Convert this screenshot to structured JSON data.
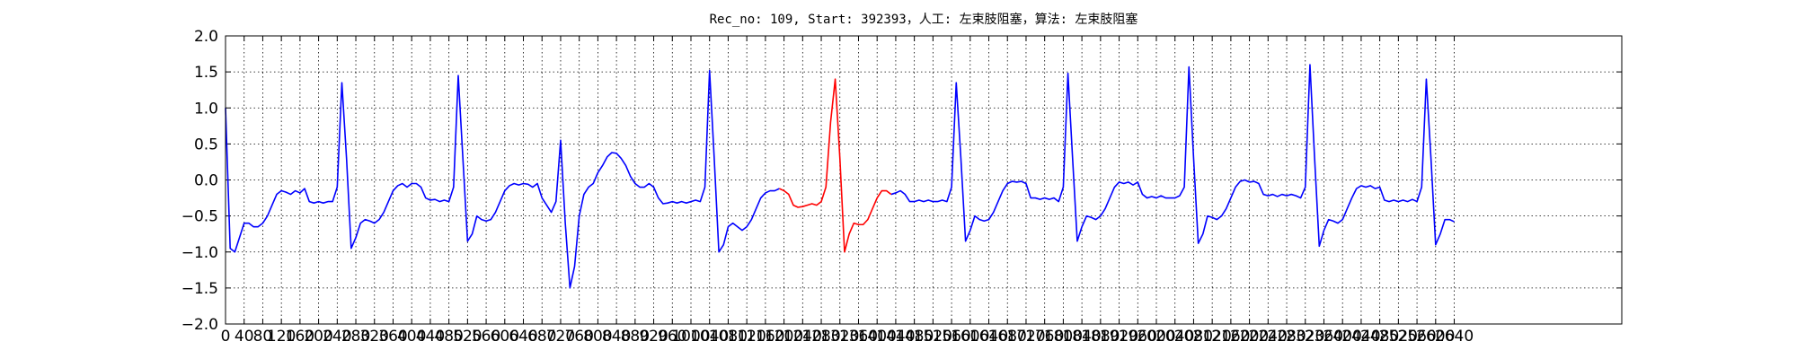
{
  "chart_data": {
    "type": "line",
    "title": "Rec_no: 109, Start: 392393，人工: 左束肢阻塞，算法: 左束肢阻塞",
    "x": [
      0,
      10,
      20,
      30,
      40,
      50,
      60,
      70,
      80,
      90,
      100,
      110,
      120,
      130,
      140,
      150,
      160,
      170,
      180,
      190,
      200,
      210,
      220,
      230,
      240,
      250,
      260,
      270,
      280,
      290,
      300,
      310,
      320,
      330,
      340,
      350,
      360,
      370,
      380,
      390,
      400,
      410,
      420,
      430,
      440,
      450,
      460,
      470,
      480,
      490,
      500,
      510,
      520,
      530,
      540,
      550,
      560,
      570,
      580,
      590,
      600,
      610,
      620,
      630,
      640,
      650,
      660,
      670,
      680,
      690,
      700,
      710,
      720,
      730,
      740,
      750,
      760,
      770,
      780,
      790,
      800,
      810,
      820,
      830,
      840,
      850,
      860,
      870,
      880,
      890,
      900,
      910,
      920,
      930,
      940,
      950,
      960,
      970,
      980,
      990,
      1000,
      1010,
      1020,
      1030,
      1040,
      1050,
      1060,
      1070,
      1080,
      1090,
      1100,
      1110,
      1120,
      1130,
      1140,
      1150,
      1160,
      1170,
      1180,
      1190,
      1200,
      1210,
      1220,
      1230,
      1240,
      1250,
      1260,
      1270,
      1280,
      1290,
      1300,
      1310,
      1320,
      1330,
      1340,
      1350,
      1360,
      1370,
      1380,
      1390,
      1400,
      1410,
      1420,
      1430,
      1440,
      1450,
      1460,
      1470,
      1480,
      1490,
      1500,
      1510,
      1520,
      1530,
      1540,
      1550,
      1560,
      1570,
      1580,
      1590,
      1600,
      1610,
      1620,
      1630,
      1640,
      1650,
      1660,
      1670,
      1680,
      1690,
      1700,
      1710,
      1720,
      1730,
      1740,
      1750,
      1760,
      1770,
      1780,
      1790,
      1800,
      1810,
      1820,
      1830,
      1840,
      1850,
      1860,
      1870,
      1880,
      1890,
      1900,
      1910,
      1920,
      1930,
      1940,
      1950,
      1960,
      1970,
      1980,
      1990,
      2000,
      2010,
      2020,
      2030,
      2040,
      2050,
      2060,
      2070,
      2080,
      2090,
      2100,
      2110,
      2120,
      2130,
      2140,
      2150,
      2160,
      2170,
      2180,
      2190,
      2200,
      2210,
      2220,
      2230,
      2240,
      2250,
      2260,
      2270,
      2280,
      2290,
      2300,
      2310,
      2320,
      2330,
      2340,
      2350,
      2360,
      2370,
      2380,
      2390,
      2400,
      2410,
      2420,
      2430,
      2440,
      2450,
      2460,
      2470,
      2480,
      2490,
      2500,
      2510,
      2520,
      2530,
      2540,
      2550,
      2560,
      2570,
      2580,
      2590,
      2600,
      2610,
      2620,
      2630,
      2640
    ],
    "series": [
      {
        "color": "#0000ff",
        "values": [
          1.0,
          -0.95,
          -1.0,
          -0.8,
          -0.6,
          -0.6,
          -0.65,
          -0.65,
          -0.6,
          -0.5,
          -0.35,
          -0.2,
          -0.15,
          -0.17,
          -0.2,
          -0.15,
          -0.18,
          -0.12,
          -0.3,
          -0.32,
          -0.3,
          -0.32,
          -0.3,
          -0.3,
          -0.1,
          1.35,
          0.3,
          -0.95,
          -0.8,
          -0.6,
          -0.55,
          -0.57,
          -0.6,
          -0.55,
          -0.45,
          -0.3,
          -0.15,
          -0.08,
          -0.05,
          -0.1,
          -0.05,
          -0.05,
          -0.1,
          -0.25,
          -0.28,
          -0.27,
          -0.3,
          -0.28,
          -0.3,
          -0.1,
          1.45,
          0.3,
          -0.85,
          -0.75,
          -0.5,
          -0.55,
          -0.57,
          -0.55,
          -0.45,
          -0.3,
          -0.15,
          -0.08,
          -0.05,
          -0.07,
          -0.05,
          -0.06,
          -0.1,
          -0.05,
          -0.25,
          -0.35,
          -0.45,
          -0.3,
          0.55,
          -0.6,
          -1.5,
          -1.2,
          -0.5,
          -0.2,
          -0.1,
          -0.05,
          0.1,
          0.2,
          0.32,
          0.38,
          0.37,
          0.3,
          0.2,
          0.05,
          -0.05,
          -0.1,
          -0.1,
          -0.05,
          -0.1,
          -0.25,
          -0.33,
          -0.32,
          -0.3,
          -0.32,
          -0.3,
          -0.32,
          -0.3,
          -0.28,
          -0.3,
          -0.1,
          1.52,
          0.3,
          -1.0,
          -0.9,
          -0.65,
          -0.6,
          -0.65,
          -0.7,
          -0.65,
          -0.55,
          -0.4,
          -0.25,
          -0.18,
          -0.15,
          -0.15,
          -0.12,
          null,
          null,
          null,
          null,
          null,
          null,
          null,
          null,
          null,
          null,
          null,
          null,
          null,
          null,
          null,
          null,
          null,
          null,
          null,
          null,
          null,
          null,
          null,
          -0.2,
          -0.18,
          -0.15,
          -0.2,
          -0.3,
          -0.3,
          -0.28,
          -0.3,
          -0.28,
          -0.3,
          -0.3,
          -0.28,
          -0.3,
          -0.1,
          1.35,
          0.3,
          -0.85,
          -0.7,
          -0.5,
          -0.55,
          -0.57,
          -0.55,
          -0.45,
          -0.3,
          -0.15,
          -0.05,
          -0.02,
          -0.03,
          -0.02,
          -0.05,
          -0.25,
          -0.25,
          -0.27,
          -0.25,
          -0.27,
          -0.25,
          -0.3,
          -0.1,
          1.48,
          0.3,
          -0.85,
          -0.65,
          -0.5,
          -0.52,
          -0.55,
          -0.5,
          -0.4,
          -0.25,
          -0.1,
          -0.03,
          -0.05,
          -0.03,
          -0.07,
          -0.03,
          -0.2,
          -0.25,
          -0.23,
          -0.25,
          -0.22,
          -0.25,
          -0.25,
          -0.25,
          -0.22,
          -0.1,
          1.57,
          0.3,
          -0.88,
          -0.75,
          -0.5,
          -0.52,
          -0.55,
          -0.5,
          -0.4,
          -0.25,
          -0.1,
          -0.02,
          0.0,
          -0.03,
          -0.02,
          -0.05,
          -0.2,
          -0.22,
          -0.2,
          -0.23,
          -0.2,
          -0.22,
          -0.2,
          -0.22,
          -0.25,
          -0.1,
          1.6,
          0.3,
          -0.92,
          -0.7,
          -0.55,
          -0.57,
          -0.6,
          -0.55,
          -0.4,
          -0.25,
          -0.12,
          -0.08,
          -0.1,
          -0.08,
          -0.12,
          -0.1,
          -0.28,
          -0.3,
          -0.28,
          -0.3,
          -0.28,
          -0.3,
          -0.27,
          -0.3,
          -0.1,
          1.4,
          0.3,
          -0.9,
          -0.75,
          -0.55,
          -0.55,
          -0.58
        ]
      },
      {
        "color": "#ff0000",
        "values": [
          null,
          null,
          null,
          null,
          null,
          null,
          null,
          null,
          null,
          null,
          null,
          null,
          null,
          null,
          null,
          null,
          null,
          null,
          null,
          null,
          null,
          null,
          null,
          null,
          null,
          null,
          null,
          null,
          null,
          null,
          null,
          null,
          null,
          null,
          null,
          null,
          null,
          null,
          null,
          null,
          null,
          null,
          null,
          null,
          null,
          null,
          null,
          null,
          null,
          null,
          null,
          null,
          null,
          null,
          null,
          null,
          null,
          null,
          null,
          null,
          null,
          null,
          null,
          null,
          null,
          null,
          null,
          null,
          null,
          null,
          null,
          null,
          null,
          null,
          null,
          null,
          null,
          null,
          null,
          null,
          null,
          null,
          null,
          null,
          null,
          null,
          null,
          null,
          null,
          null,
          null,
          null,
          null,
          null,
          null,
          null,
          null,
          null,
          null,
          null,
          null,
          null,
          null,
          null,
          null,
          null,
          null,
          null,
          null,
          null,
          null,
          null,
          null,
          null,
          null,
          null,
          null,
          null,
          null,
          -0.12,
          -0.15,
          -0.2,
          -0.35,
          -0.38,
          -0.37,
          -0.35,
          -0.33,
          -0.35,
          -0.3,
          -0.1,
          0.8,
          1.4,
          0.3,
          -1.0,
          -0.75,
          -0.6,
          -0.62,
          -0.62,
          -0.55,
          -0.4,
          -0.25,
          -0.15,
          -0.15,
          -0.2,
          null,
          null,
          null,
          null,
          null,
          null,
          null,
          null,
          null,
          null,
          null,
          null,
          null,
          null,
          null,
          null,
          null,
          null,
          null,
          null,
          null,
          null,
          null,
          null,
          null,
          null,
          null,
          null,
          null,
          null,
          null,
          null,
          null,
          null,
          null,
          null,
          null,
          null,
          null,
          null,
          null,
          null,
          null,
          null,
          null,
          null,
          null,
          null,
          null,
          null,
          null,
          null,
          null,
          null,
          null,
          null,
          null,
          null,
          null,
          null,
          null,
          null,
          null,
          null,
          null,
          null,
          null,
          null,
          null,
          null,
          null,
          null,
          null,
          null,
          null,
          null,
          null,
          null,
          null,
          null,
          null,
          null,
          null,
          null,
          null,
          null,
          null,
          null,
          null,
          null,
          null,
          null,
          null,
          null,
          null,
          null,
          null,
          null,
          null,
          null,
          null,
          null,
          null,
          null,
          null,
          null,
          null,
          null,
          null,
          null,
          null,
          null,
          null,
          null,
          null,
          null,
          null,
          null,
          null,
          null,
          null
        ]
      }
    ],
    "xlim": [
      0,
      3000
    ],
    "xticks": [
      0,
      40,
      80,
      120,
      160,
      200,
      240,
      280,
      320,
      360,
      400,
      440,
      480,
      520,
      560,
      600,
      640,
      680,
      720,
      760,
      800,
      840,
      880,
      920,
      960,
      1000,
      1040,
      1080,
      1120,
      1160,
      1200,
      1240,
      1280,
      1320,
      1360,
      1400,
      1440,
      1480,
      1520,
      1560,
      1600,
      1640,
      1680,
      1720,
      1760,
      1800,
      1840,
      1880,
      1920,
      1960,
      2000,
      2040,
      2080,
      2120,
      2160,
      2200,
      2240,
      2280,
      2320,
      2360,
      2400,
      2440,
      2480,
      2520,
      2560,
      2600,
      2640
    ],
    "ylim": [
      -2.0,
      2.0
    ],
    "yticks": [
      {
        "value": -2.0,
        "label": "−2.0"
      },
      {
        "value": -1.5,
        "label": "−1.5"
      },
      {
        "value": -1.0,
        "label": "−1.0"
      },
      {
        "value": -0.5,
        "label": "−0.5"
      },
      {
        "value": 0.0,
        "label": "0.0"
      },
      {
        "value": 0.5,
        "label": "0.5"
      },
      {
        "value": 1.0,
        "label": "1.0"
      },
      {
        "value": 1.5,
        "label": "1.5"
      },
      {
        "value": 2.0,
        "label": "2.0"
      }
    ],
    "grid": true
  }
}
